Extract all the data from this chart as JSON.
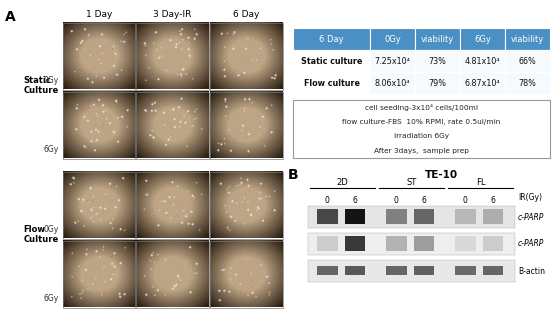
{
  "panel_A_label": "A",
  "panel_B_label": "B",
  "col_headers": [
    "1 Day",
    "3 Day-IR",
    "6 Day"
  ],
  "row_group1_label": "Static\nCulture",
  "row_group2_label": "Flow\nCulture",
  "table_header": [
    "6 Day",
    "0Gy",
    "viability",
    "6Gy",
    "viability"
  ],
  "table_row1": [
    "Static culture",
    "7.25x10⁴",
    "73%",
    "4.81x10⁴",
    "66%"
  ],
  "table_row2": [
    "Flow culture",
    "8.06x10⁴",
    "79%",
    "6.87x10⁴",
    "78%"
  ],
  "note_lines": [
    "cell seeding-3x10⁴ cells/100ml",
    "flow culture-FBS  10% RPMI, rate 0.5ul/min",
    "irradiation 6Gy",
    "After 3days,  sample prep"
  ],
  "western_title": "TE-10",
  "western_groups": [
    "2D",
    "ST",
    "FL"
  ],
  "western_ir_label": "IR(Gy)",
  "header_bg_color": "#4a90c4",
  "header_text_color": "#ffffff",
  "bg_color": "#ffffff",
  "img_base_color": [
    0.745,
    0.647,
    0.525
  ],
  "img_vignette_color": [
    0.35,
    0.28,
    0.2
  ]
}
